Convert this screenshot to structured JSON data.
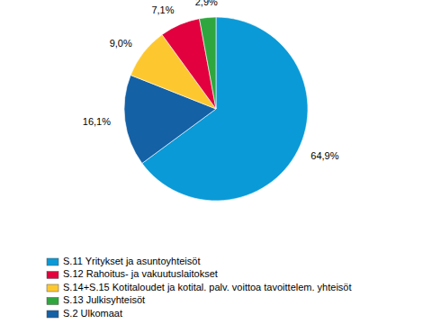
{
  "chart_data": {
    "type": "pie",
    "categories": [
      "S.11 Yritykset ja asuntoyhteisöt",
      "S.2 Ulkomaat",
      "S.14+S.15 Kotitaloudet ja kotital. palv. voittoa tavoittelem. yhteisöt",
      "S.12 Rahoitus- ja vakuutuslaitokset",
      "S.13 Julkisyhteisöt"
    ],
    "values": [
      64.9,
      16.1,
      9.0,
      7.1,
      2.9
    ],
    "value_labels": [
      "64,9%",
      "16,1%",
      "9,0%",
      "7,1%",
      "2,9%"
    ],
    "colors": [
      "#0a9ad7",
      "#1461a6",
      "#fdc82f",
      "#e2003e",
      "#2fa73e"
    ],
    "data_labels": true,
    "legend": "bottom"
  }
}
